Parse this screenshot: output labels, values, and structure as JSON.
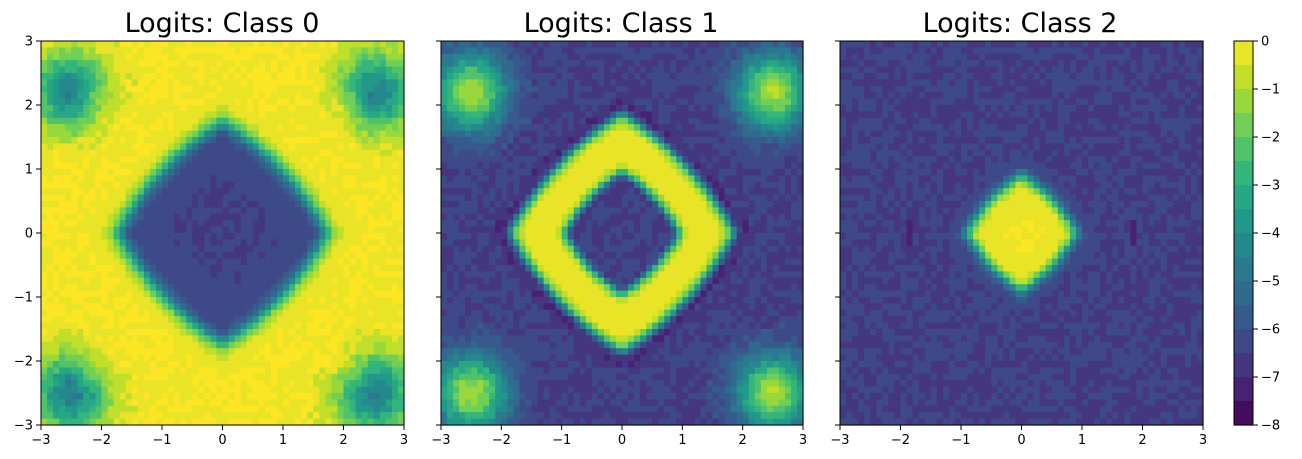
{
  "chart_data": [
    {
      "type": "heatmap",
      "title": "Logits: Class 0",
      "xlim": [
        -3,
        3
      ],
      "ylim": [
        -3,
        3
      ],
      "xticks": [
        "−3",
        "−2",
        "−1",
        "0",
        "1",
        "2",
        "3"
      ],
      "yticks": [
        "3",
        "2",
        "1",
        "0",
        "−1",
        "−2",
        "−3"
      ],
      "pattern": "high (≈0) everywhere except a low (≈−6.5) rounded-diamond region |x|+|y| < ~1.9 at the center; lower values (≈−6) in the four corners",
      "center_value": -6.5,
      "ring_value": 0,
      "corner_value": -6
    },
    {
      "type": "heatmap",
      "title": "Logits: Class 1",
      "xlim": [
        -3,
        3
      ],
      "ylim": [
        -3,
        3
      ],
      "xticks": [
        "−3",
        "−2",
        "−1",
        "0",
        "1",
        "2",
        "3"
      ],
      "yticks": [],
      "pattern": "low (≈−6.5) background; bright (≈0) diamond ring between |x|+|y| ≈ 0.9 and 1.9; darkest (≈−7.5) just inside and outside the ring; bright blobs (≈−1) near the four corners",
      "ring_value": 0,
      "background_value": -6.5,
      "corner_blob_value": -1
    },
    {
      "type": "heatmap",
      "title": "Logits: Class 2",
      "xlim": [
        -3,
        3
      ],
      "ylim": [
        -3,
        3
      ],
      "xticks": [
        "−3",
        "−2",
        "−1",
        "0",
        "1",
        "2",
        "3"
      ],
      "yticks": [],
      "pattern": "low (≈−6.5) everywhere except a bright (≈0) rounded-diamond core |x|+|y| < ~0.9 at the center",
      "core_value": 0,
      "background_value": -6.5
    }
  ],
  "colorbar": {
    "ticks": [
      "0",
      "−1",
      "−2",
      "−3",
      "−4",
      "−5",
      "−6",
      "−7",
      "−8"
    ],
    "range": [
      -8,
      0
    ],
    "colormap": "viridis"
  },
  "colors": {
    "viridis_stops": [
      "#440154",
      "#482878",
      "#3e4a89",
      "#31688e",
      "#26828e",
      "#1f9e89",
      "#35b779",
      "#6ece58",
      "#b5de2b",
      "#fde725"
    ]
  }
}
